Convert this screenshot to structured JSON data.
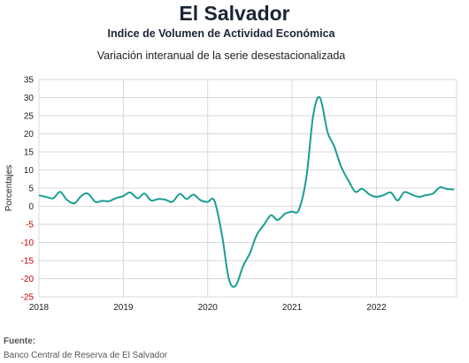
{
  "chart_data": {
    "type": "line",
    "title": "El Salvador",
    "subtitle": "Indice de Volumen de  Actividad Económica",
    "subtitle2": "Variación interanual de la serie desestacionalizada",
    "ylabel": "Porcentajes",
    "xlabel": "",
    "ylim": [
      -25,
      35
    ],
    "y_ticks": [
      35,
      30,
      25,
      20,
      15,
      10,
      5,
      0,
      -5,
      -10,
      -15,
      -20,
      -25
    ],
    "x_ticks": [
      "2018",
      "2019",
      "2020",
      "2021",
      "2022"
    ],
    "x_tick_values": [
      2018,
      2019,
      2020,
      2021,
      2022
    ],
    "xlim": [
      2018,
      2022.95
    ],
    "grid": true,
    "negative_tick_color": "#c00000",
    "series": [
      {
        "color": "#1a9e93",
        "x": [
          2018.0,
          2018.08,
          2018.17,
          2018.25,
          2018.33,
          2018.42,
          2018.5,
          2018.58,
          2018.67,
          2018.75,
          2018.83,
          2018.92,
          2019.0,
          2019.08,
          2019.17,
          2019.25,
          2019.33,
          2019.42,
          2019.5,
          2019.58,
          2019.67,
          2019.75,
          2019.83,
          2019.92,
          2020.0,
          2020.08,
          2020.17,
          2020.25,
          2020.33,
          2020.42,
          2020.5,
          2020.58,
          2020.67,
          2020.75,
          2020.83,
          2020.92,
          2021.0,
          2021.08,
          2021.17,
          2021.25,
          2021.33,
          2021.42,
          2021.5,
          2021.58,
          2021.67,
          2021.75,
          2021.83,
          2021.92,
          2022.0,
          2022.08,
          2022.17,
          2022.25,
          2022.33,
          2022.42,
          2022.5,
          2022.58,
          2022.67,
          2022.75,
          2022.83,
          2022.92
        ],
        "y": [
          3.0,
          2.6,
          2.2,
          4.0,
          1.8,
          0.8,
          2.8,
          3.5,
          1.2,
          1.5,
          1.4,
          2.3,
          2.8,
          3.8,
          2.2,
          3.5,
          1.6,
          2.0,
          1.8,
          1.2,
          3.4,
          2.0,
          3.2,
          1.6,
          1.2,
          1.5,
          -8.0,
          -20.0,
          -22.0,
          -16.5,
          -13.0,
          -8.0,
          -5.0,
          -2.5,
          -3.8,
          -2.0,
          -1.5,
          -1.0,
          8.0,
          25.0,
          30.0,
          20.5,
          16.5,
          11.0,
          7.0,
          4.0,
          4.8,
          3.2,
          2.6,
          3.0,
          3.8,
          1.6,
          3.9,
          3.2,
          2.6,
          3.0,
          3.5,
          5.2,
          4.8,
          4.6
        ]
      }
    ]
  },
  "source": {
    "label": "Fuente:",
    "text": "Banco Central de Reserva de El Salvador"
  }
}
